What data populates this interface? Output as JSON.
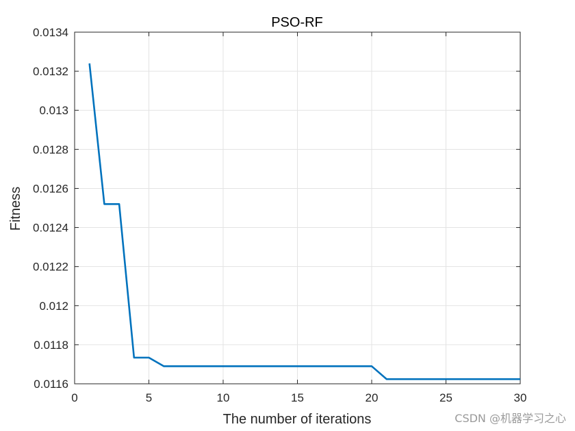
{
  "chart_data": {
    "type": "line",
    "title": "PSO-RF",
    "xlabel": "The number of iterations",
    "ylabel": "Fitness",
    "xlim": [
      0,
      30
    ],
    "ylim": [
      0.0116,
      0.0134
    ],
    "xticks": [
      0,
      5,
      10,
      15,
      20,
      25,
      30
    ],
    "xtick_labels": [
      "0",
      "5",
      "10",
      "15",
      "20",
      "25",
      "30"
    ],
    "yticks": [
      0.0116,
      0.0118,
      0.012,
      0.0122,
      0.0124,
      0.0126,
      0.0128,
      0.013,
      0.0132,
      0.0134
    ],
    "ytick_labels": [
      "0.0116",
      "0.0118",
      "0.012",
      "0.0122",
      "0.0124",
      "0.0126",
      "0.0128",
      "0.013",
      "0.0132",
      "0.0134"
    ],
    "grid": true,
    "series": [
      {
        "color": "#0072BD",
        "x": [
          1,
          2,
          3,
          4,
          5,
          6,
          7,
          8,
          9,
          10,
          11,
          12,
          13,
          14,
          15,
          16,
          17,
          18,
          19,
          20,
          21,
          22,
          23,
          24,
          25,
          26,
          27,
          28,
          29,
          30
        ],
        "y": [
          0.01324,
          0.01252,
          0.01252,
          0.011734,
          0.011734,
          0.01169,
          0.01169,
          0.01169,
          0.01169,
          0.01169,
          0.01169,
          0.01169,
          0.01169,
          0.01169,
          0.01169,
          0.01169,
          0.01169,
          0.01169,
          0.01169,
          0.01169,
          0.011624,
          0.011624,
          0.011624,
          0.011624,
          0.011624,
          0.011624,
          0.011624,
          0.011624,
          0.011624,
          0.011624
        ]
      }
    ]
  },
  "watermark": "CSDN @机器学习之心"
}
